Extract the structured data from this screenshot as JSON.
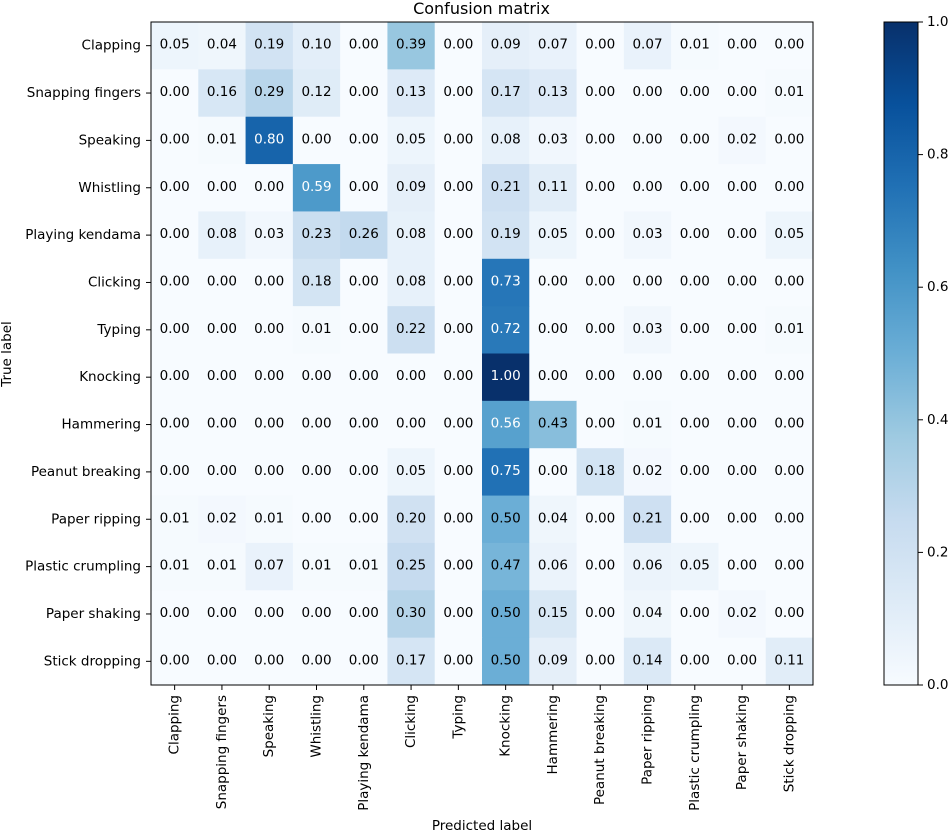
{
  "chart_data": {
    "type": "heatmap",
    "title": "Confusion matrix",
    "xlabel": "Predicted label",
    "ylabel": "True label",
    "colormap": "Blues",
    "categories": [
      "Clapping",
      "Snapping fingers",
      "Speaking",
      "Whistling",
      "Playing kendama",
      "Clicking",
      "Typing",
      "Knocking",
      "Hammering",
      "Peanut breaking",
      "Paper ripping",
      "Plastic crumpling",
      "Paper shaking",
      "Stick dropping"
    ],
    "values": [
      [
        0.05,
        0.04,
        0.19,
        0.1,
        0.0,
        0.39,
        0.0,
        0.09,
        0.07,
        0.0,
        0.07,
        0.01,
        0.0,
        0.0
      ],
      [
        0.0,
        0.16,
        0.29,
        0.12,
        0.0,
        0.13,
        0.0,
        0.17,
        0.13,
        0.0,
        0.0,
        0.0,
        0.0,
        0.01
      ],
      [
        0.0,
        0.01,
        0.8,
        0.0,
        0.0,
        0.05,
        0.0,
        0.08,
        0.03,
        0.0,
        0.0,
        0.0,
        0.02,
        0.0
      ],
      [
        0.0,
        0.0,
        0.0,
        0.59,
        0.0,
        0.09,
        0.0,
        0.21,
        0.11,
        0.0,
        0.0,
        0.0,
        0.0,
        0.0
      ],
      [
        0.0,
        0.08,
        0.03,
        0.23,
        0.26,
        0.08,
        0.0,
        0.19,
        0.05,
        0.0,
        0.03,
        0.0,
        0.0,
        0.05
      ],
      [
        0.0,
        0.0,
        0.0,
        0.18,
        0.0,
        0.08,
        0.0,
        0.73,
        0.0,
        0.0,
        0.0,
        0.0,
        0.0,
        0.0
      ],
      [
        0.0,
        0.0,
        0.0,
        0.01,
        0.0,
        0.22,
        0.0,
        0.72,
        0.0,
        0.0,
        0.03,
        0.0,
        0.0,
        0.01
      ],
      [
        0.0,
        0.0,
        0.0,
        0.0,
        0.0,
        0.0,
        0.0,
        1.0,
        0.0,
        0.0,
        0.0,
        0.0,
        0.0,
        0.0
      ],
      [
        0.0,
        0.0,
        0.0,
        0.0,
        0.0,
        0.0,
        0.0,
        0.56,
        0.43,
        0.0,
        0.01,
        0.0,
        0.0,
        0.0
      ],
      [
        0.0,
        0.0,
        0.0,
        0.0,
        0.0,
        0.05,
        0.0,
        0.75,
        0.0,
        0.18,
        0.02,
        0.0,
        0.0,
        0.0
      ],
      [
        0.01,
        0.02,
        0.01,
        0.0,
        0.0,
        0.2,
        0.0,
        0.5,
        0.04,
        0.0,
        0.21,
        0.0,
        0.0,
        0.0
      ],
      [
        0.01,
        0.01,
        0.07,
        0.01,
        0.01,
        0.25,
        0.0,
        0.47,
        0.06,
        0.0,
        0.06,
        0.05,
        0.0,
        0.0
      ],
      [
        0.0,
        0.0,
        0.0,
        0.0,
        0.0,
        0.3,
        0.0,
        0.5,
        0.15,
        0.0,
        0.04,
        0.0,
        0.02,
        0.0
      ],
      [
        0.0,
        0.0,
        0.0,
        0.0,
        0.0,
        0.17,
        0.0,
        0.5,
        0.09,
        0.0,
        0.14,
        0.0,
        0.0,
        0.11
      ]
    ],
    "colorbar": {
      "range": [
        0.0,
        1.0
      ],
      "ticks": [
        "0.0",
        "0.2",
        "0.4",
        "0.6",
        "0.8",
        "1.0"
      ]
    },
    "text_threshold": 0.5
  }
}
